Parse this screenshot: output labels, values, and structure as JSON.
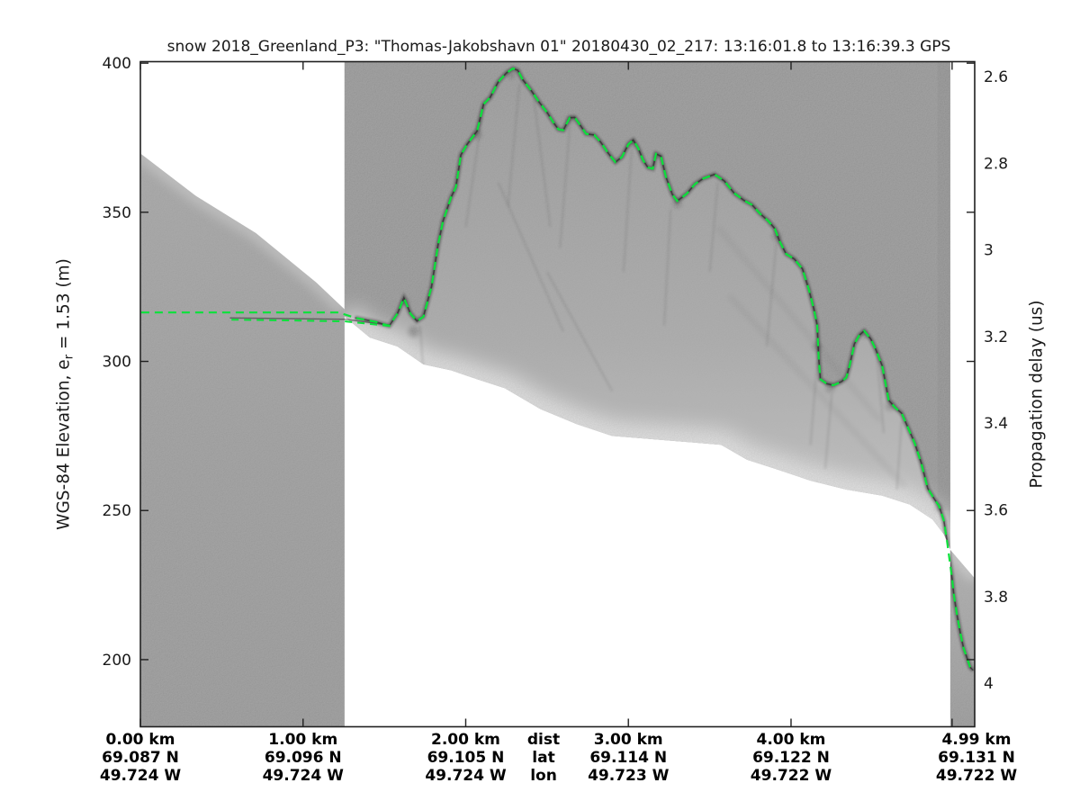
{
  "title": "snow 2018_Greenland_P3: \"Thomas-Jakobshavn 01\"  20180430_02_217: 13:16:01.8 to 13:16:39.3 GPS",
  "left_axis": {
    "label_pre": "WGS-84 Elevation, e",
    "label_sub": "r",
    "label_post": " = 1.53 (m)",
    "ticks": [
      400,
      350,
      300,
      250,
      200
    ]
  },
  "right_axis": {
    "label": "Propagation delay (us)",
    "ticks": [
      2.6,
      2.8,
      3,
      3.2,
      3.4,
      3.6,
      3.8,
      4
    ]
  },
  "bottom_axis": {
    "row_names": [
      "dist",
      "lat",
      "lon"
    ],
    "columns": [
      {
        "km": "0.00 km",
        "lat": "69.087 N",
        "lon": "49.724 W"
      },
      {
        "km": "1.00 km",
        "lat": "69.096 N",
        "lon": "49.724 W"
      },
      {
        "km": "2.00 km",
        "lat": "69.105 N",
        "lon": "49.724 W"
      },
      {
        "km": "3.00 km",
        "lat": "69.114 N",
        "lon": "49.723 W"
      },
      {
        "km": "4.00 km",
        "lat": "69.122 N",
        "lon": "49.722 W"
      },
      {
        "km": "4.99 km",
        "lat": "69.131 N",
        "lon": "49.722 W"
      }
    ]
  },
  "colors": {
    "surface_pick_green": "#0ae23a",
    "axes_line": "#202020",
    "tick_text": "#1a1a1a",
    "bottom_text": "#000000",
    "echogram_gray": "#8c8c8c",
    "left_swath_gray": "#949494",
    "right_band_gray": "#a8a8a8"
  },
  "chart_data": {
    "type": "line",
    "title": "snow 2018_Greenland_P3: \"Thomas-Jakobshavn 01\"  20180430_02_217: 13:16:01.8 to 13:16:39.3 GPS",
    "xlabel": "dist (km)",
    "ylabel_left": "WGS-84 Elevation, e_r = 1.53 (m)",
    "ylabel_right": "Propagation delay (us)",
    "x_axis": {
      "range_km": [
        0,
        5.129
      ],
      "ticks_km": [
        0,
        1,
        2,
        3,
        4,
        4.99
      ]
    },
    "y_axis_left": {
      "range_m": [
        177.5,
        400.5
      ],
      "ticks_m": [
        400,
        350,
        300,
        250,
        200
      ]
    },
    "y_axis_right": {
      "ticks_us": [
        2.6,
        2.8,
        3,
        3.2,
        3.4,
        3.6,
        3.8,
        4
      ]
    },
    "grid": false,
    "series": [
      {
        "name": "surface-pick-main",
        "style": "dashed",
        "points_km_m": [
          [
            0.005,
            316.4
          ],
          [
            0.4,
            316.4
          ],
          [
            0.8,
            316.4
          ],
          [
            1.22,
            316.4
          ],
          [
            1.32,
            314.6
          ],
          [
            1.45,
            313.2
          ],
          [
            1.53,
            311.9
          ],
          [
            1.58,
            316.0
          ],
          [
            1.62,
            321.3
          ],
          [
            1.66,
            316.0
          ],
          [
            1.7,
            313.5
          ],
          [
            1.74,
            315.0
          ],
          [
            1.79,
            325.0
          ],
          [
            1.83,
            339.0
          ],
          [
            1.86,
            347.0
          ],
          [
            1.91,
            355.0
          ],
          [
            1.94,
            358.5
          ],
          [
            1.97,
            369.2
          ],
          [
            2.01,
            372.9
          ],
          [
            2.07,
            377.2
          ],
          [
            2.11,
            386.3
          ],
          [
            2.15,
            388.5
          ],
          [
            2.2,
            393.7
          ],
          [
            2.25,
            396.7
          ],
          [
            2.29,
            398.2
          ],
          [
            2.32,
            397.6
          ],
          [
            2.35,
            394.5
          ],
          [
            2.4,
            391.0
          ],
          [
            2.45,
            387.0
          ],
          [
            2.5,
            383.5
          ],
          [
            2.54,
            380.0
          ],
          [
            2.57,
            377.8
          ],
          [
            2.6,
            377.5
          ],
          [
            2.64,
            381.7
          ],
          [
            2.67,
            381.8
          ],
          [
            2.7,
            379.5
          ],
          [
            2.74,
            376.3
          ],
          [
            2.79,
            375.9
          ],
          [
            2.83,
            373.5
          ],
          [
            2.88,
            369.5
          ],
          [
            2.92,
            366.8
          ],
          [
            2.96,
            368.5
          ],
          [
            3.0,
            372.8
          ],
          [
            3.03,
            374.2
          ],
          [
            3.06,
            371.5
          ],
          [
            3.09,
            367.5
          ],
          [
            3.12,
            365.0
          ],
          [
            3.15,
            364.6
          ],
          [
            3.17,
            369.6
          ],
          [
            3.2,
            368.8
          ],
          [
            3.23,
            362.0
          ],
          [
            3.27,
            356.0
          ],
          [
            3.3,
            353.8
          ],
          [
            3.33,
            355.0
          ],
          [
            3.36,
            356.3
          ],
          [
            3.41,
            359.5
          ],
          [
            3.46,
            361.3
          ],
          [
            3.53,
            362.7
          ],
          [
            3.59,
            360.5
          ],
          [
            3.65,
            356.4
          ],
          [
            3.71,
            354.0
          ],
          [
            3.76,
            352.5
          ],
          [
            3.81,
            349.5
          ],
          [
            3.86,
            347.1
          ],
          [
            3.9,
            344.5
          ],
          [
            3.93,
            340.2
          ],
          [
            3.97,
            336.0
          ],
          [
            4.02,
            334.3
          ],
          [
            4.07,
            331.0
          ],
          [
            4.11,
            324.0
          ],
          [
            4.14,
            317.5
          ],
          [
            4.16,
            312.3
          ],
          [
            4.17,
            301.0
          ],
          [
            4.18,
            294.0
          ],
          [
            4.22,
            292.5
          ],
          [
            4.26,
            292.0
          ],
          [
            4.31,
            293.2
          ],
          [
            4.34,
            294.6
          ],
          [
            4.36,
            298.5
          ],
          [
            4.39,
            305.9
          ],
          [
            4.42,
            308.8
          ],
          [
            4.45,
            310.2
          ],
          [
            4.49,
            307.5
          ],
          [
            4.52,
            304.1
          ],
          [
            4.56,
            298.5
          ],
          [
            4.6,
            287.0
          ],
          [
            4.64,
            284.5
          ],
          [
            4.68,
            282.6
          ],
          [
            4.72,
            277.6
          ],
          [
            4.76,
            272.6
          ],
          [
            4.8,
            266.0
          ],
          [
            4.84,
            257.4
          ],
          [
            4.88,
            253.9
          ],
          [
            4.91,
            251.5
          ],
          [
            4.94,
            246.5
          ],
          [
            4.96,
            239.2
          ],
          [
            4.99,
            227.1
          ],
          [
            5.0,
            222.0
          ],
          [
            5.02,
            215.1
          ],
          [
            5.04,
            209.1
          ],
          [
            5.06,
            204.0
          ],
          [
            5.08,
            200.9
          ],
          [
            5.1,
            197.5
          ],
          [
            5.12,
            196.4
          ]
        ]
      },
      {
        "name": "surface-pick-secondary",
        "style": "dashed",
        "points_km_m": [
          [
            0.56,
            314.0
          ],
          [
            0.95,
            313.7
          ],
          [
            1.26,
            313.4
          ],
          [
            1.53,
            311.9
          ]
        ]
      }
    ],
    "echogram_regions": {
      "left_swath_top_boundary_km_m": [
        [
          0.005,
          369.5
        ],
        [
          0.34,
          355.5
        ],
        [
          0.71,
          343.0
        ],
        [
          1.08,
          326.5
        ],
        [
          1.255,
          317.5
        ]
      ],
      "main_swath_bottom_boundary_km_m": [
        [
          1.255,
          315.0
        ],
        [
          1.41,
          308.0
        ],
        [
          1.58,
          305.0
        ],
        [
          1.74,
          299.0
        ],
        [
          1.91,
          297.0
        ],
        [
          2.07,
          294.0
        ],
        [
          2.24,
          291.0
        ],
        [
          2.46,
          284.0
        ],
        [
          2.68,
          279.0
        ],
        [
          2.9,
          275.0
        ],
        [
          3.13,
          274.0
        ],
        [
          3.35,
          273.0
        ],
        [
          3.57,
          272.0
        ],
        [
          3.73,
          267.0
        ],
        [
          3.9,
          264.0
        ],
        [
          4.12,
          260.0
        ],
        [
          4.34,
          257.0
        ],
        [
          4.56,
          255.0
        ],
        [
          4.73,
          252.0
        ],
        [
          4.87,
          247.0
        ],
        [
          4.94,
          242.0
        ],
        [
          4.979,
          237.0
        ]
      ],
      "right_band_top_boundary_km_m": [
        [
          4.979,
          236.8
        ],
        [
          5.129,
          227.3
        ]
      ],
      "left_swath_x_km": [
        0.003,
        1.255
      ],
      "main_swath_x_km": [
        1.255,
        4.979
      ],
      "right_band_x_km": [
        4.979,
        5.129
      ]
    },
    "texture": {
      "dark_left_line_km_m": [
        [
          0.55,
          314.6
        ],
        [
          1.26,
          314.1
        ],
        [
          1.53,
          312.2
        ]
      ],
      "knots_km_m_r": [
        [
          1.63,
          320,
          4
        ],
        [
          1.68,
          310,
          6
        ],
        [
          2.07,
          376,
          5
        ],
        [
          2.28,
          396,
          4
        ],
        [
          2.64,
          381,
          4
        ],
        [
          3.02,
          373,
          4
        ],
        [
          3.17,
          369,
          3
        ],
        [
          3.3,
          353,
          5
        ],
        [
          3.91,
          342,
          5
        ],
        [
          4.16,
          305,
          5
        ],
        [
          4.24,
          291,
          5
        ],
        [
          4.45,
          309,
          4
        ],
        [
          4.61,
          285,
          5
        ],
        [
          4.91,
          251,
          4
        ]
      ],
      "streaks_km_m": [
        [
          1.8,
          330,
          1.8,
          296
        ],
        [
          1.72,
          312,
          1.76,
          280
        ],
        [
          2.1,
          382,
          2.0,
          345
        ],
        [
          2.33,
          393,
          2.26,
          352
        ],
        [
          2.42,
          388,
          2.52,
          345
        ],
        [
          2.64,
          379,
          2.58,
          338
        ],
        [
          3.02,
          371,
          2.97,
          330
        ],
        [
          3.26,
          351,
          3.22,
          312
        ],
        [
          3.55,
          360,
          3.5,
          330
        ],
        [
          3.91,
          340,
          3.85,
          305
        ],
        [
          4.16,
          300,
          4.12,
          272
        ],
        [
          4.25,
          289,
          4.21,
          264
        ],
        [
          4.53,
          301,
          4.57,
          276
        ],
        [
          4.68,
          280,
          4.65,
          257
        ],
        [
          3.62,
          322,
          4.7,
          258
        ],
        [
          3.55,
          345,
          4.55,
          280
        ],
        [
          2.5,
          330,
          2.9,
          290
        ],
        [
          2.2,
          360,
          2.6,
          310
        ]
      ]
    }
  }
}
